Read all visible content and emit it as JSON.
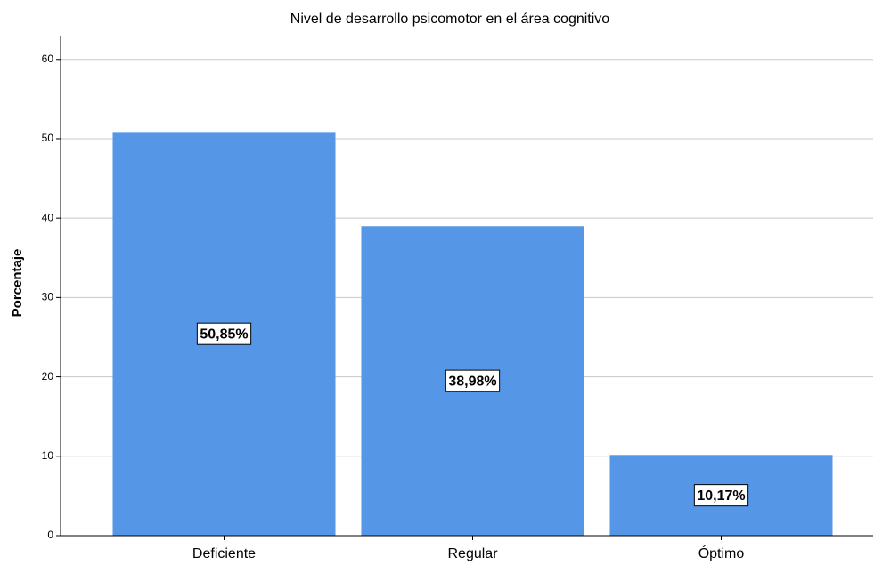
{
  "chart_data": {
    "type": "bar",
    "title": "Nivel de desarrollo psicomotor en el área cognitivo",
    "y_label": "Porcentaje",
    "categories": [
      "Deficiente",
      "Regular",
      "Óptimo"
    ],
    "values": [
      50.85,
      38.98,
      10.17
    ],
    "value_labels": [
      "50,85%",
      "38,98%",
      "10,17%"
    ],
    "color": "#5596e6",
    "ylim": [
      0,
      63
    ],
    "yticks": [
      0,
      10,
      20,
      30,
      40,
      50,
      60
    ],
    "grid": true
  }
}
